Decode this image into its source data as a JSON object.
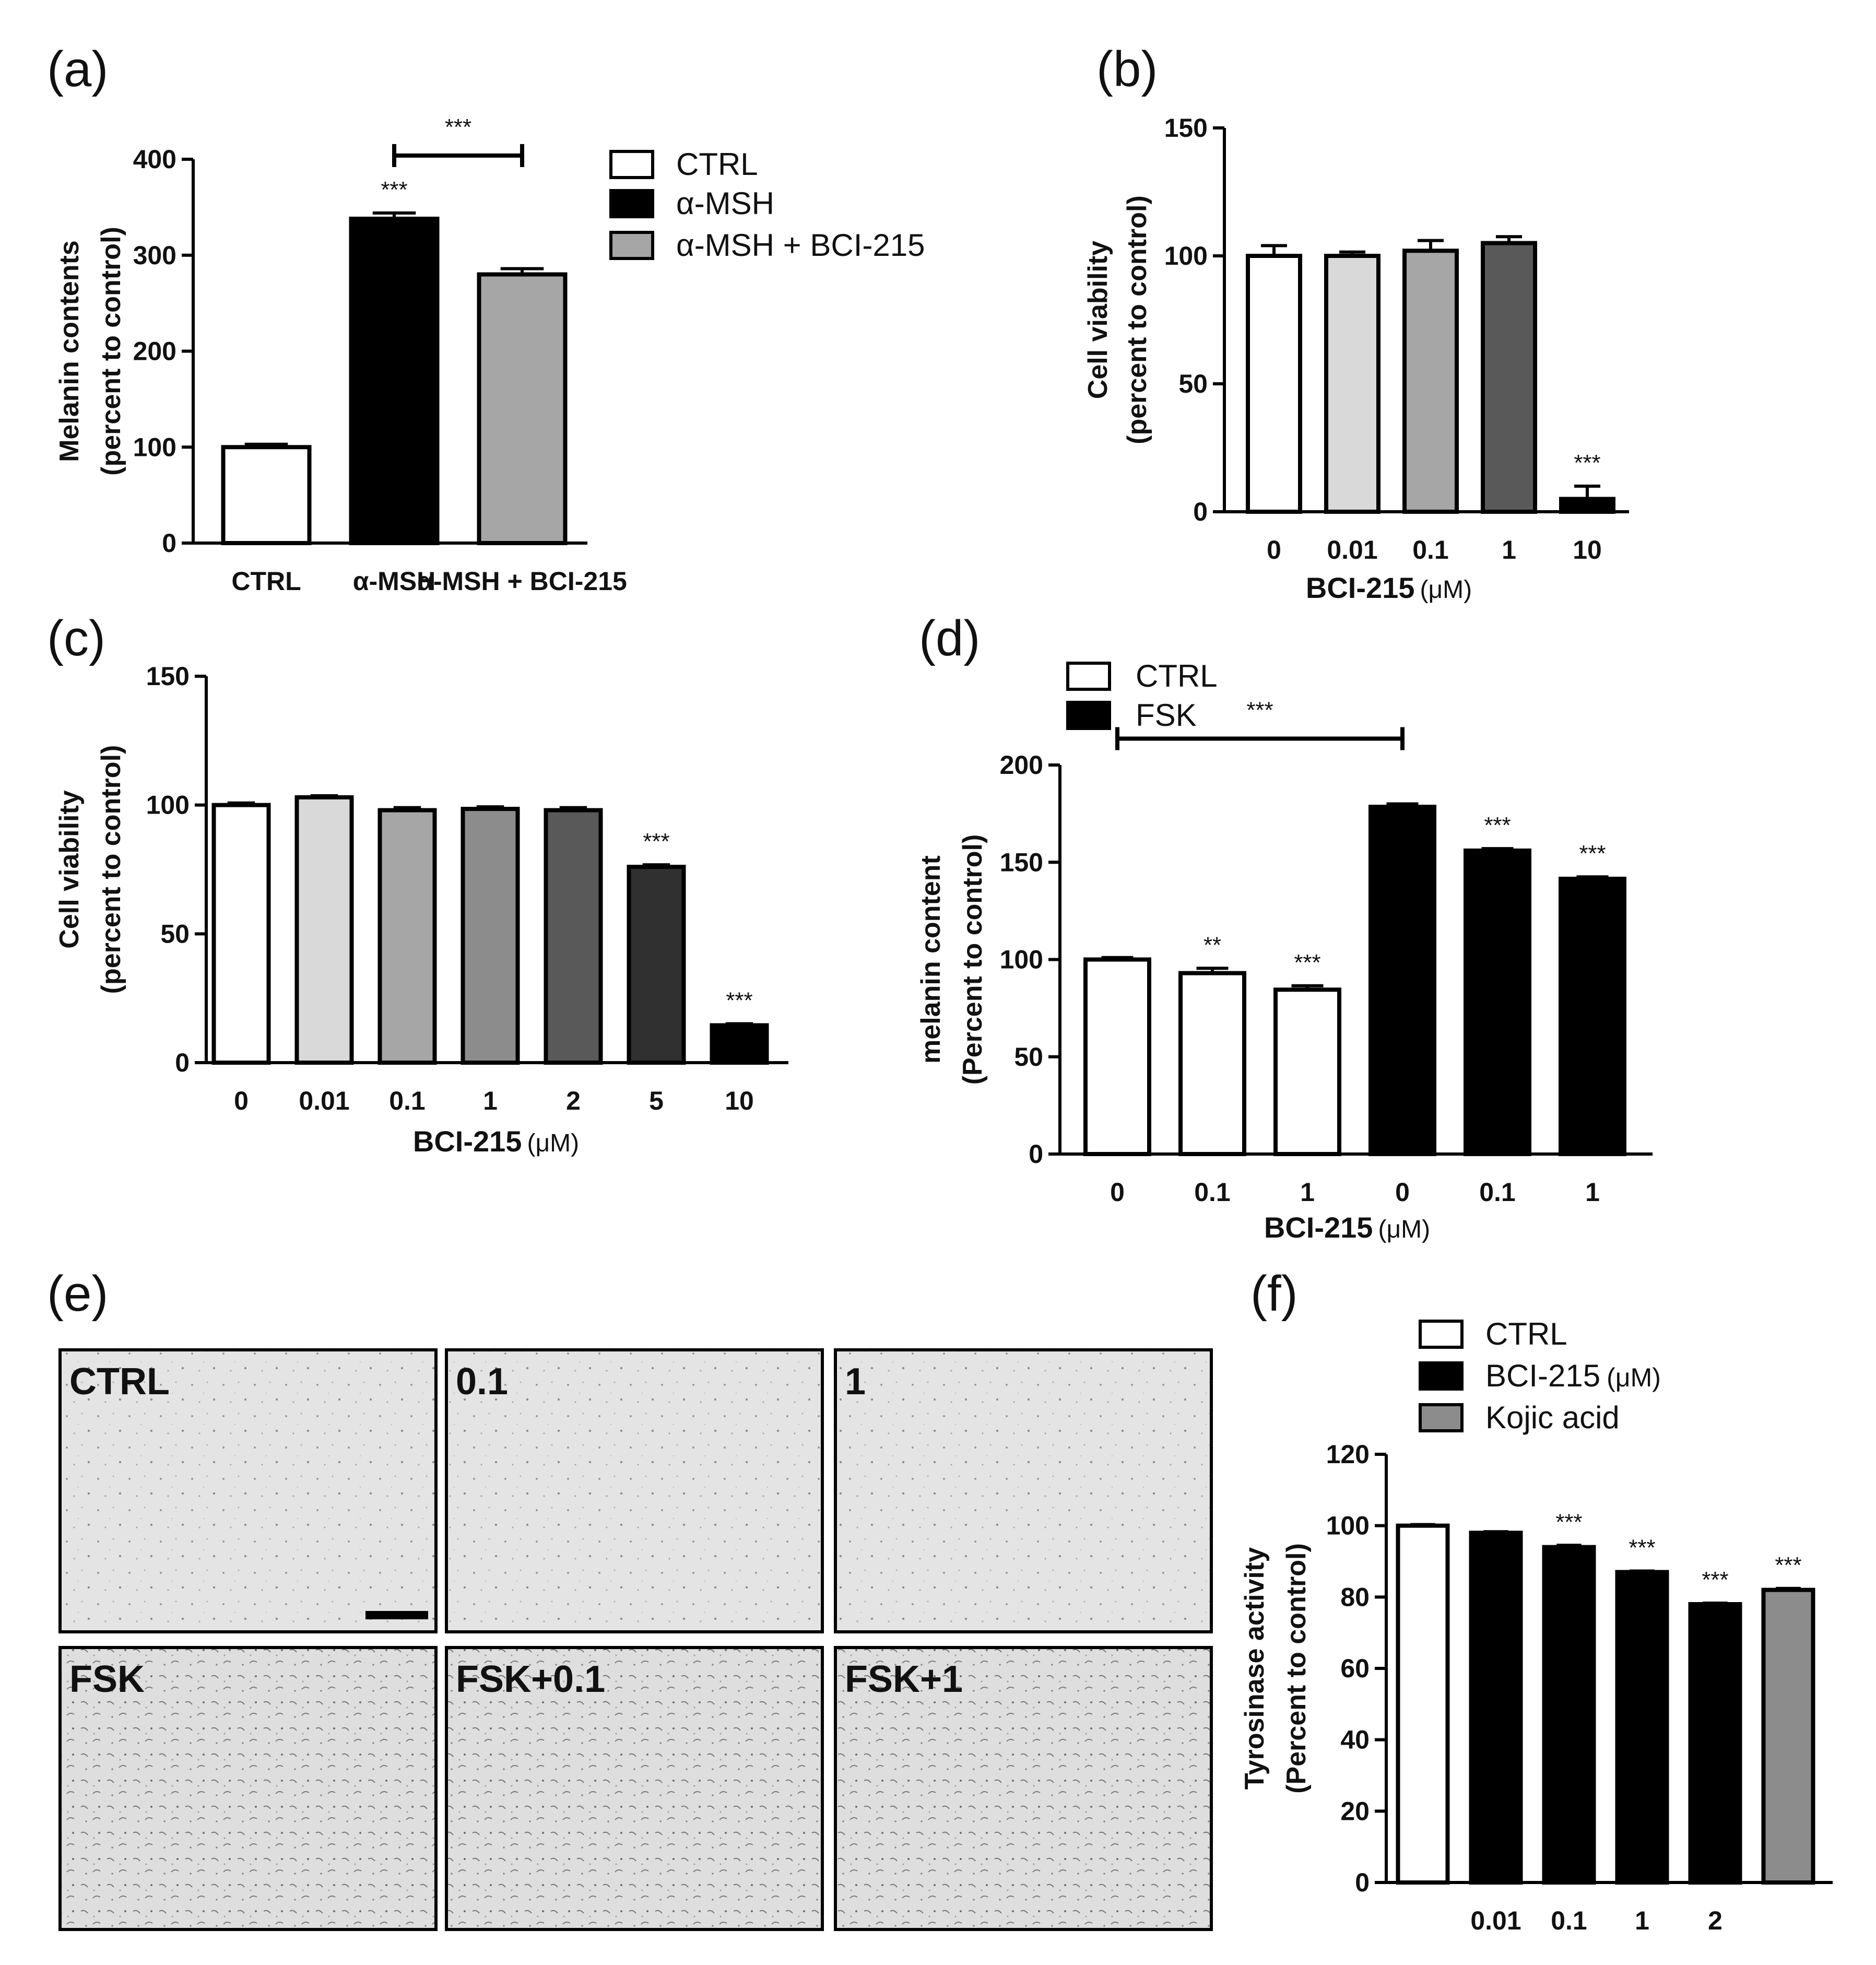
{
  "chart_data": [
    {
      "panel": "(a)",
      "type": "bar",
      "categories": [
        "CTRL",
        "α-MSH",
        "α-MSH + BCI-215"
      ],
      "values": [
        100,
        338,
        280
      ],
      "errors": [
        3,
        6,
        6
      ],
      "significance": [
        "",
        "***",
        ""
      ],
      "bracket": {
        "from": 1,
        "to": 2,
        "label": "***"
      },
      "ylabel": [
        "Melanin contents",
        "(percent to control)"
      ],
      "ylim": [
        0,
        400
      ],
      "yticks": [
        "0",
        "100",
        "200",
        "300",
        "400"
      ],
      "legend": {
        "placement": "right",
        "entries": [
          "CTRL",
          "α-MSH",
          "α-MSH + BCI-215"
        ]
      }
    },
    {
      "panel": "(b)",
      "type": "bar",
      "categories": [
        "0",
        "0.01",
        "0.1",
        "1",
        "10"
      ],
      "values": [
        100,
        100,
        102,
        105,
        5
      ],
      "errors": [
        4,
        1.5,
        4,
        2.5,
        5
      ],
      "significance": [
        "",
        "",
        "",
        "",
        "***"
      ],
      "xlabel": "BCI-215",
      "xunit": "(μM)",
      "ylabel": [
        "Cell viability",
        "(percent to control)"
      ],
      "ylim": [
        0,
        150
      ],
      "yticks": [
        "0",
        "50",
        "100",
        "150"
      ]
    },
    {
      "panel": "(c)",
      "type": "bar",
      "categories": [
        "0",
        "0.01",
        "0.1",
        "1",
        "2",
        "5",
        "10"
      ],
      "values": [
        100,
        103,
        98,
        98.5,
        98,
        76,
        14.5
      ],
      "errors": [
        0.8,
        0.6,
        1,
        0.8,
        1,
        0.8,
        0.6
      ],
      "significance": [
        "",
        "",
        "",
        "",
        "",
        "***",
        "***"
      ],
      "xlabel": "BCI-215",
      "xunit": "(μM)",
      "ylabel": [
        "Cell viability",
        "(percent to control)"
      ],
      "ylim": [
        0,
        150
      ],
      "yticks": [
        "0",
        "50",
        "100",
        "150"
      ]
    },
    {
      "panel": "(d)",
      "type": "bar",
      "categories": [
        "0",
        "0.1",
        "1",
        "0",
        "0.1",
        "1"
      ],
      "groups": [
        "CTRL",
        "CTRL",
        "CTRL",
        "FSK",
        "FSK",
        "FSK"
      ],
      "values": [
        100,
        93,
        84.5,
        178.5,
        156,
        141.5
      ],
      "errors": [
        1,
        2.5,
        2,
        1.5,
        1,
        1
      ],
      "significance": [
        "",
        "**",
        "***",
        "",
        "***",
        "***"
      ],
      "bracket": {
        "from": 0,
        "to": 3,
        "label": "***"
      },
      "xlabel": "BCI-215",
      "xunit": "(μM)",
      "ylabel": [
        "melanin content",
        "(Percent to control)"
      ],
      "ylim": [
        0,
        200
      ],
      "yticks": [
        "0",
        "50",
        "100",
        "150",
        "200"
      ],
      "legend": {
        "placement": "top-left",
        "entries": [
          "CTRL",
          "FSK"
        ]
      }
    },
    {
      "panel": "(f)",
      "type": "bar",
      "categories": [
        "",
        "0.01",
        "0.1",
        "1",
        "2",
        ""
      ],
      "groups": [
        "CTRL",
        "BCI-215",
        "BCI-215",
        "BCI-215",
        "BCI-215",
        "Kojic acid"
      ],
      "values": [
        100,
        98,
        94,
        87,
        78,
        82
      ],
      "errors": [
        0.3,
        0.3,
        0.5,
        0.3,
        0.3,
        0.4
      ],
      "significance": [
        "",
        "",
        "***",
        "***",
        "***",
        "***"
      ],
      "ylabel": [
        "Tyrosinase activity",
        "(Percent to control)"
      ],
      "ylim": [
        0,
        120
      ],
      "yticks": [
        "0",
        "20",
        "40",
        "60",
        "80",
        "100",
        "120"
      ],
      "legend": {
        "placement": "top",
        "entries": [
          "CTRL",
          "BCI-215",
          "Kojic acid"
        ],
        "entry_units": [
          "",
          "(μM)",
          ""
        ]
      }
    }
  ],
  "panel_labels": {
    "a": "(a)",
    "b": "(b)",
    "c": "(c)",
    "d": "(d)",
    "e": "(e)",
    "f": "(f)"
  },
  "micrographs": {
    "panel": "(e)",
    "labels": [
      "CTRL",
      "0.1",
      "1",
      "FSK",
      "FSK+0.1",
      "FSK+1"
    ]
  },
  "colors": {
    "ctrl": "#ffffff",
    "black": "#000000",
    "light_gray": "#d9d9d9",
    "mid_gray": "#a6a6a6",
    "gray": "#8c8c8c",
    "dark_gray": "#595959",
    "darker_gray": "#303030",
    "micrograph_bg": "#e4e4e4"
  }
}
